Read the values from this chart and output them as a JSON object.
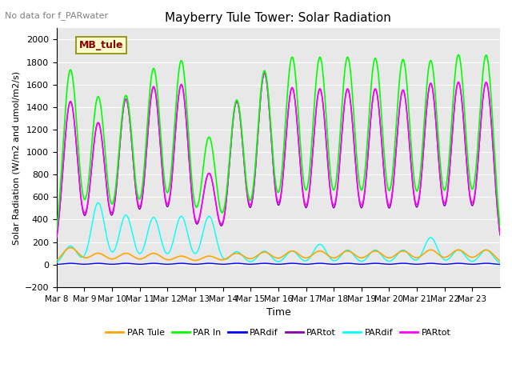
{
  "title": "Mayberry Tule Tower: Solar Radiation",
  "subtitle": "No data for f_PARwater",
  "ylabel": "Solar Radiation (W/m2 and umol/m2/s)",
  "xlabel": "Time",
  "ylim": [
    -200,
    2100
  ],
  "yticks": [
    -200,
    0,
    200,
    400,
    600,
    800,
    1000,
    1200,
    1400,
    1600,
    1800,
    2000
  ],
  "date_labels": [
    "Mar 8",
    "Mar 9",
    "Mar 10",
    "Mar 11",
    "Mar 12",
    "Mar 13",
    "Mar 14",
    "Mar 15",
    "Mar 16",
    "Mar 17",
    "Mar 18",
    "Mar 19",
    "Mar 20",
    "Mar 21",
    "Mar 22",
    "Mar 23"
  ],
  "num_days": 16,
  "legend_labels": [
    "PAR Tule",
    "PAR In",
    "PARdif",
    "PARtot",
    "PARdif",
    "PARtot"
  ],
  "legend_colors": [
    "#FFA500",
    "#00FF00",
    "#0000FF",
    "#8800AA",
    "#00FFFF",
    "#FF00FF"
  ],
  "line_colors": {
    "PAR_tule": "#FFA500",
    "PAR_in": "#00FF00",
    "PARdif_blue": "#0000FF",
    "PARtot_purple": "#8800AA",
    "PARdif_cyan": "#00FFFF",
    "PARtot_magenta": "#FF00FF"
  },
  "peak_heights_green": [
    1730,
    1490,
    1500,
    1740,
    1810,
    1130,
    1460,
    1720,
    1840,
    1840,
    1840,
    1830,
    1820,
    1810,
    1860,
    1860
  ],
  "peak_heights_magenta": [
    1450,
    1260,
    1470,
    1580,
    1600,
    810,
    1450,
    1700,
    1570,
    1560,
    1560,
    1560,
    1550,
    1610,
    1620,
    1620
  ],
  "peak_heights_orange": [
    150,
    100,
    100,
    100,
    75,
    75,
    100,
    110,
    120,
    120,
    120,
    120,
    120,
    130,
    130,
    130
  ],
  "peak_heights_cyan": [
    165,
    550,
    440,
    420,
    430,
    430,
    115,
    120,
    120,
    180,
    130,
    130,
    130,
    240,
    130,
    130
  ],
  "mb_tule_box": {
    "text": "MB_tule"
  },
  "plot_bg": "#E8E8E8"
}
